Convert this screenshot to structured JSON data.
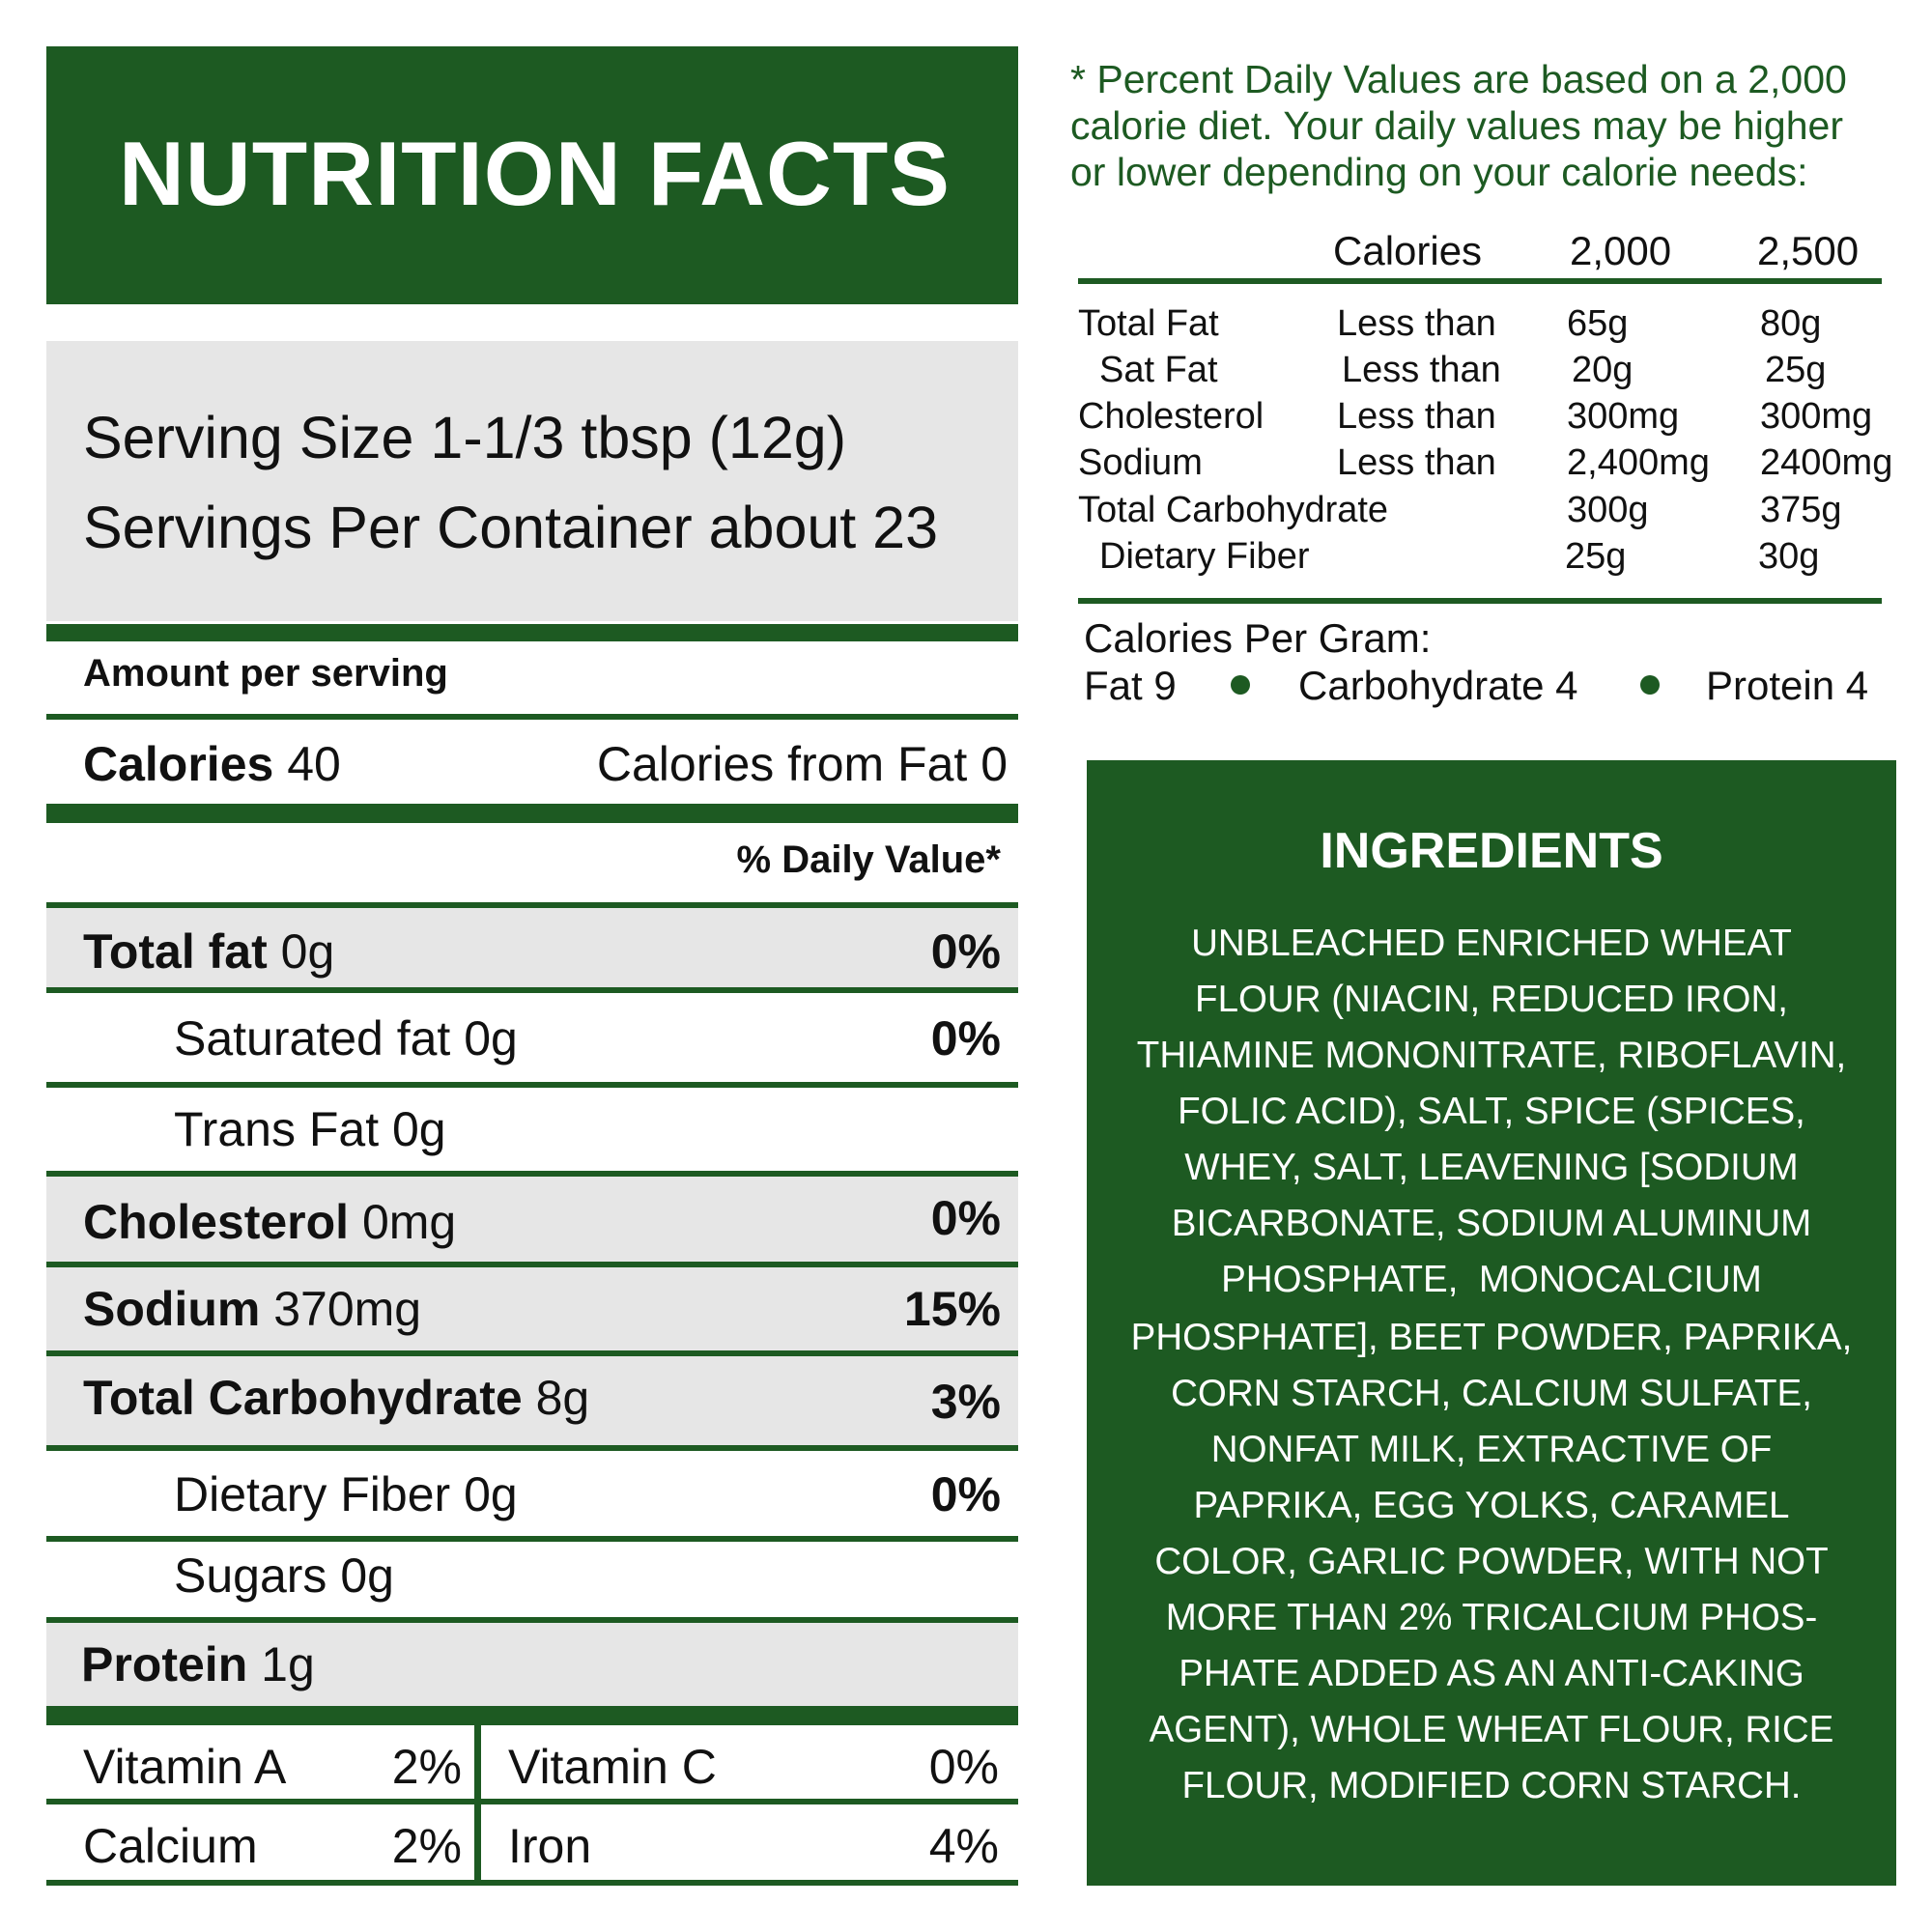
{
  "title": "NUTRITION FACTS",
  "serving": {
    "size": "Serving Size 1-1/3 tbsp (12g)",
    "per_container": "Servings Per Container about 23"
  },
  "amount_per_serving": "Amount per serving",
  "calories": {
    "label": "Calories",
    "value": "40",
    "from_fat": "Calories from Fat 0"
  },
  "daily_value_header": "% Daily Value*",
  "nutrients": [
    {
      "name": "Total fat",
      "amount": "0g",
      "pct": "0%"
    },
    {
      "name": "Saturated fat 0g",
      "amount": "",
      "pct": "0%"
    },
    {
      "name": "Trans Fat 0g",
      "amount": "",
      "pct": ""
    },
    {
      "name": "Cholesterol",
      "amount": "0mg",
      "pct": "0%"
    },
    {
      "name": "Sodium",
      "amount": "370mg",
      "pct": "15%"
    },
    {
      "name": "Total Carbohydrate",
      "amount": "8g",
      "pct": "3%"
    },
    {
      "name": "Dietary Fiber 0g",
      "amount": "",
      "pct": "0%"
    },
    {
      "name": "Sugars 0g",
      "amount": "",
      "pct": ""
    },
    {
      "name": "Protein",
      "amount": "1g",
      "pct": ""
    }
  ],
  "vitamins": [
    {
      "name": "Vitamin A",
      "pct": "2%"
    },
    {
      "name": "Vitamin C",
      "pct": "0%"
    },
    {
      "name": "Calcium",
      "pct": "2%"
    },
    {
      "name": "Iron",
      "pct": "4%"
    }
  ],
  "footnote": [
    "* Percent Daily Values are based on a 2,000",
    "calorie diet. Your daily values may be higher",
    "or lower depending on your calorie needs:"
  ],
  "dv_table": {
    "headers": [
      "Calories",
      "2,000",
      "2,500"
    ],
    "rows": [
      [
        "Total Fat",
        "Less than",
        "65g",
        "80g"
      ],
      [
        "Sat Fat",
        "Less than",
        "20g",
        "25g"
      ],
      [
        "Cholesterol",
        "Less than",
        "300mg",
        "300mg"
      ],
      [
        "Sodium",
        "Less than",
        "2,400mg",
        "2400mg"
      ],
      [
        "Total Carbohydrate",
        "",
        "300g",
        "375g"
      ],
      [
        "Dietary Fiber",
        "",
        "25g",
        "30g"
      ]
    ]
  },
  "calories_per_gram": {
    "label": "Calories Per Gram:",
    "fat": "Fat 9",
    "carb": "Carbohydrate 4",
    "protein": "Protein 4"
  },
  "ingredients": {
    "title": "INGREDIENTS",
    "lines": [
      "UNBLEACHED ENRICHED WHEAT",
      "FLOUR (NIACIN, REDUCED IRON,",
      "THIAMINE MONONITRATE, RIBOFLAVIN,",
      "FOLIC ACID), SALT, SPICE (SPICES,",
      "WHEY, SALT, LEAVENING [SODIUM",
      "BICARBONATE, SODIUM ALUMINUM",
      "PHOSPHATE,  MONOCALCIUM",
      "PHOSPHATE], BEET POWDER, PAPRIKA,",
      "CORN STARCH, CALCIUM SULFATE,",
      "NONFAT MILK, EXTRACTIVE OF",
      "PAPRIKA, EGG YOLKS, CARAMEL",
      "COLOR, GARLIC POWDER, WITH NOT",
      "MORE THAN 2% TRICALCIUM PHOS-",
      "PHATE ADDED AS AN ANTI-CAKING",
      "AGENT), WHOLE WHEAT FLOUR, RICE",
      "FLOUR, MODIFIED CORN STARCH."
    ]
  },
  "colors": {
    "brand_green": "#1d5a22",
    "row_grey": "#e6e6e6"
  }
}
